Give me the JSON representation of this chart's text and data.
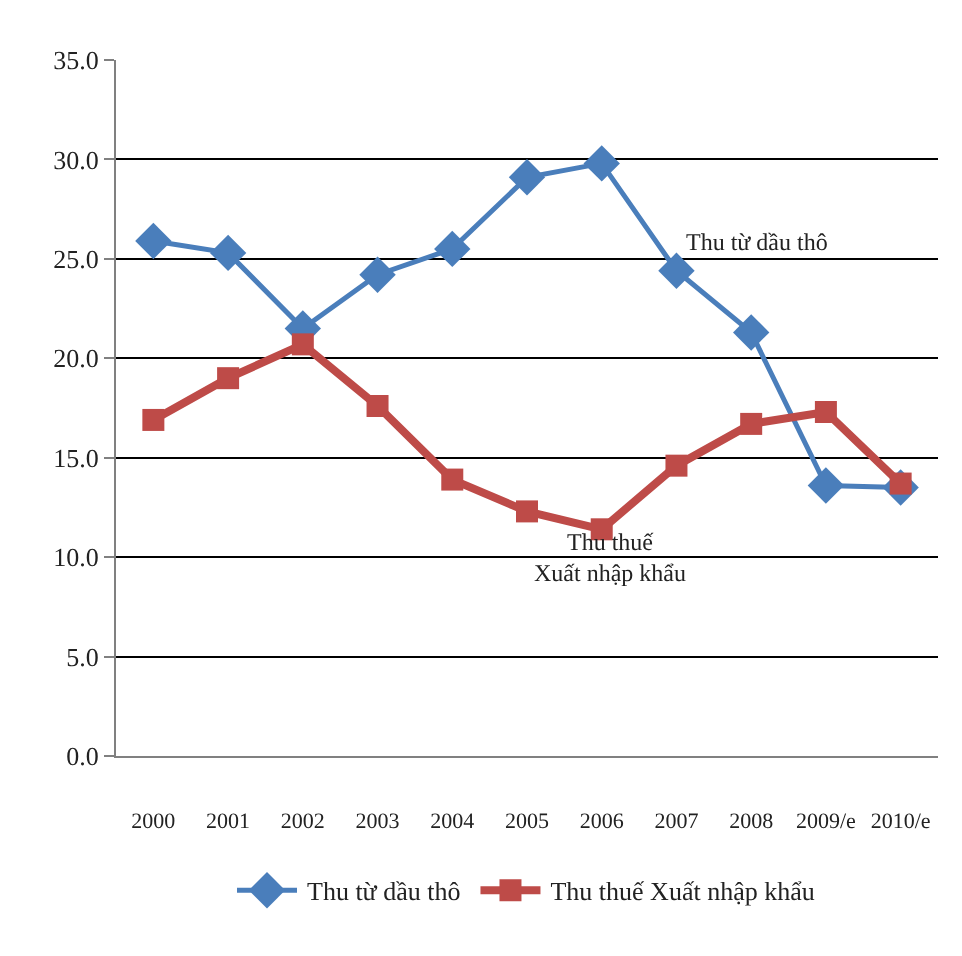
{
  "chart_data": {
    "type": "line",
    "categories": [
      "2000",
      "2001",
      "2002",
      "2003",
      "2004",
      "2005",
      "2006",
      "2007",
      "2008",
      "2009/e",
      "2010/e"
    ],
    "series": [
      {
        "name": "Thu từ dầu thô",
        "color": "#4a7ebb",
        "marker": "diamond",
        "values": [
          25.9,
          25.3,
          21.5,
          24.2,
          25.5,
          29.1,
          29.8,
          24.4,
          21.3,
          13.6,
          13.5
        ]
      },
      {
        "name": "Thu thuế Xuất nhập khẩu",
        "color": "#be4b48",
        "marker": "square",
        "values": [
          16.9,
          19.0,
          20.7,
          17.6,
          13.9,
          12.3,
          11.4,
          14.6,
          16.7,
          17.3,
          13.7
        ]
      }
    ],
    "ylim": [
      0,
      35
    ],
    "yticks": [
      {
        "value": 0,
        "label": "0.0"
      },
      {
        "value": 5,
        "label": "5.0"
      },
      {
        "value": 10,
        "label": "10.0"
      },
      {
        "value": 15,
        "label": "15.0"
      },
      {
        "value": 20,
        "label": "20.0"
      },
      {
        "value": 25,
        "label": "25.0"
      },
      {
        "value": 30,
        "label": "30.0"
      },
      {
        "value": 35,
        "label": "35.0"
      }
    ],
    "grid": "y",
    "legend": "bottom",
    "annotations": [
      "Thu từ dầu thô",
      "Thu thuế\nXuất nhập khẩu"
    ]
  }
}
